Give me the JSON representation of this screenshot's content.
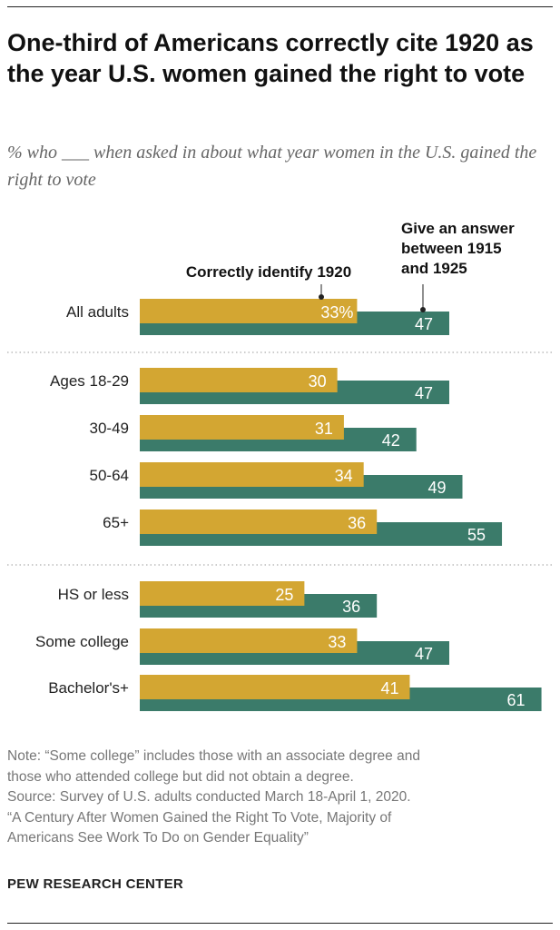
{
  "title": "One-third of Americans correctly cite 1920 as the year U.S. women gained the right to vote",
  "subtitle": "% who ___ when asked in about what year women in the U.S. gained the right to vote",
  "chart_data": {
    "type": "bar",
    "title": "One-third of Americans correctly cite 1920 as the year U.S. women gained the right to vote",
    "categories": [
      "All adults",
      "Ages 18-29",
      "30-49",
      "50-64",
      "65+",
      "HS or less",
      "Some college",
      "Bachelor's+"
    ],
    "groups": [
      [
        0
      ],
      [
        1,
        2,
        3,
        4
      ],
      [
        5,
        6,
        7
      ]
    ],
    "series": [
      {
        "name": "Correctly identify 1920",
        "color": "#D3A632",
        "values": [
          33,
          30,
          31,
          34,
          36,
          25,
          33,
          41
        ]
      },
      {
        "name": "Give an answer between 1915 and 1925",
        "color": "#3B7B6A",
        "values": [
          47,
          47,
          42,
          49,
          55,
          36,
          47,
          61
        ]
      }
    ],
    "first_label_suffix": "%",
    "legend_labels": [
      "Correctly identify 1920",
      "Give an answer",
      "between 1915",
      "and 1925"
    ],
    "xlim": [
      0,
      61
    ]
  },
  "note": [
    "Note: “Some college” includes those with an associate degree and",
    "those who attended college but did not obtain a degree.",
    "Source: Survey of U.S. adults conducted March 18-April 1, 2020.",
    "“A Century After Women Gained the Right To Vote, Majority of",
    "Americans See Work To Do on Gender Equality”"
  ],
  "org": "PEW RESEARCH CENTER"
}
